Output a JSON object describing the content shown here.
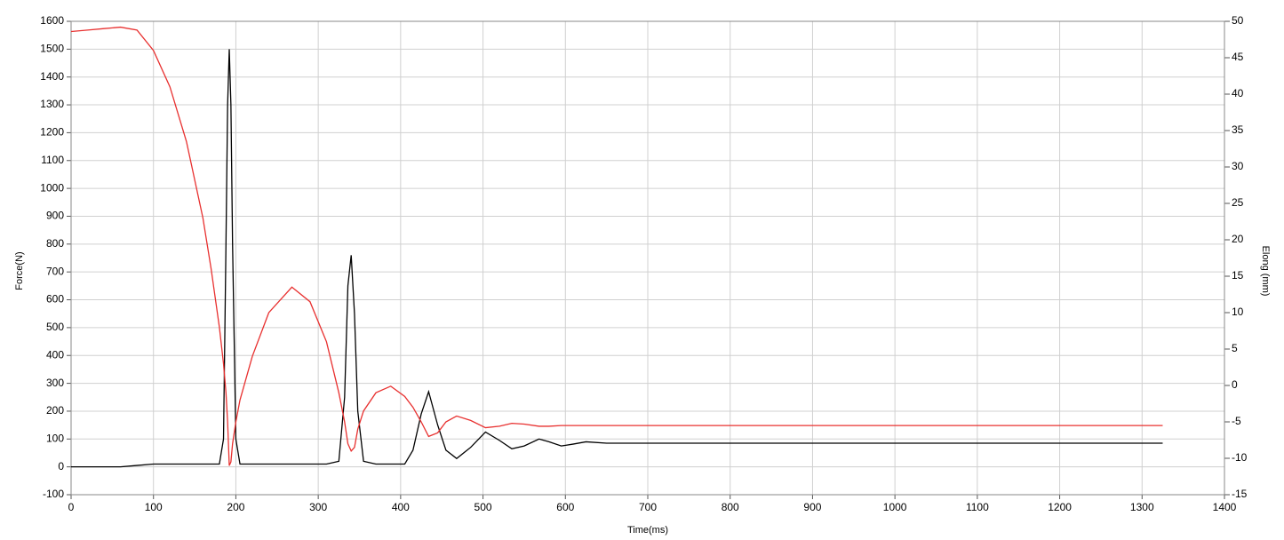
{
  "chart_data": {
    "type": "line",
    "x_label": "Time(ms)",
    "y_label": "Force(N)",
    "y2_label": "Elong (mm)",
    "x": [
      0,
      20,
      40,
      60,
      80,
      100,
      120,
      140,
      160,
      170,
      180,
      185,
      188,
      190,
      192,
      194,
      196,
      200,
      205,
      220,
      240,
      268,
      290,
      310,
      325,
      332,
      336,
      340,
      344,
      348,
      355,
      370,
      388,
      405,
      415,
      425,
      434,
      445,
      455,
      468,
      485,
      503,
      520,
      535,
      550,
      568,
      580,
      595,
      610,
      625,
      650,
      700,
      800,
      900,
      1000,
      1100,
      1200,
      1325
    ],
    "series": [
      {
        "color": "#000000",
        "values": [
          0,
          0,
          0,
          0,
          5,
          10,
          10,
          10,
          10,
          10,
          10,
          100,
          800,
          1300,
          1500,
          1300,
          800,
          100,
          10,
          10,
          10,
          10,
          10,
          10,
          20,
          250,
          650,
          760,
          550,
          200,
          20,
          10,
          10,
          10,
          60,
          190,
          270,
          150,
          60,
          30,
          70,
          125,
          95,
          65,
          75,
          100,
          90,
          75,
          82,
          90,
          85,
          85,
          85,
          85,
          85,
          85,
          85,
          85
        ]
      },
      {
        "color": "#e8302f",
        "axis": "y2",
        "values": [
          48.6,
          48.8,
          49,
          49.2,
          48.8,
          46,
          41,
          33.5,
          23,
          16,
          8,
          3,
          -1,
          -5,
          -11,
          -10.5,
          -8,
          -5,
          -2,
          4,
          10,
          13.5,
          11.5,
          6,
          -1,
          -5,
          -8,
          -9,
          -8.5,
          -6,
          -3.5,
          -1,
          -0.1,
          -1.5,
          -3,
          -5,
          -7,
          -6.5,
          -5,
          -4.2,
          -4.8,
          -5.8,
          -5.6,
          -5.2,
          -5.3,
          -5.6,
          -5.6,
          -5.5,
          -5.5,
          -5.5,
          -5.5,
          -5.5,
          -5.5,
          -5.5,
          -5.5,
          -5.5,
          -5.5,
          -5.5
        ]
      }
    ],
    "xlim": [
      0,
      1400
    ],
    "xticks": [
      0,
      100,
      200,
      300,
      400,
      500,
      600,
      700,
      800,
      900,
      1000,
      1100,
      1200,
      1300,
      1400
    ],
    "ylim": [
      -100,
      1600
    ],
    "yticks": [
      -100,
      0,
      100,
      200,
      300,
      400,
      500,
      600,
      700,
      800,
      900,
      1000,
      1100,
      1200,
      1300,
      1400,
      1500,
      1600
    ],
    "y2lim": [
      -15,
      50
    ],
    "y2ticks": [
      -15,
      -10,
      -5,
      0,
      5,
      10,
      15,
      20,
      25,
      30,
      35,
      40,
      45,
      50
    ],
    "grid": true
  }
}
